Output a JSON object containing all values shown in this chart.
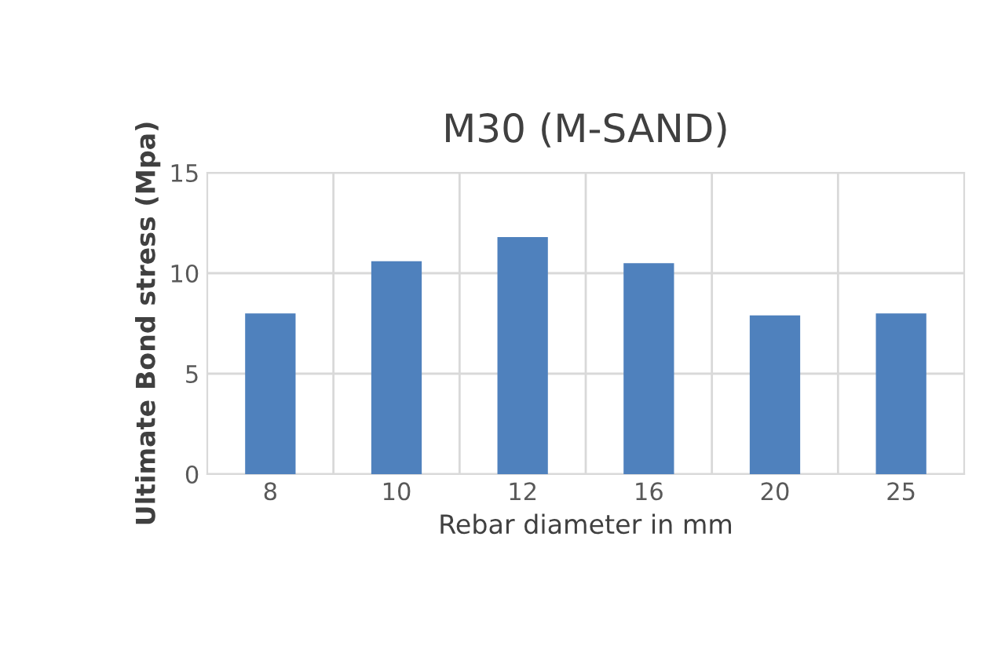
{
  "chart_data": {
    "type": "bar",
    "title": "M30 (M-SAND)",
    "xlabel": "Rebar diameter in mm",
    "ylabel": "Ultimate Bond stress (Mpa)",
    "categories": [
      "8",
      "10",
      "12",
      "16",
      "20",
      "25"
    ],
    "values": [
      8.0,
      10.6,
      11.8,
      10.5,
      7.9,
      8.0
    ],
    "color": "#4f81bd",
    "ylim": [
      0,
      15
    ],
    "yticks": [
      0,
      5,
      10,
      15
    ],
    "grid": true
  }
}
